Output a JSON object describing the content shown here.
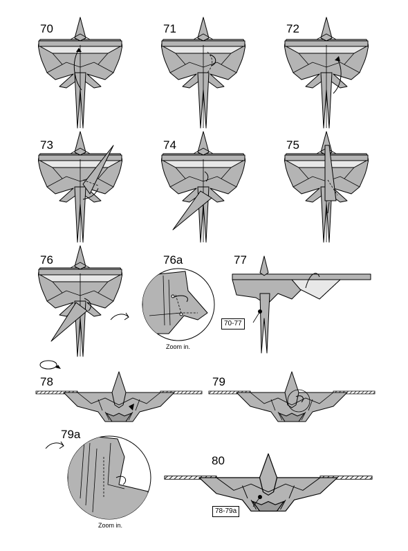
{
  "steps": {
    "s70": "70",
    "s71": "71",
    "s72": "72",
    "s73": "73",
    "s74": "74",
    "s75": "75",
    "s76": "76",
    "s76a": "76a",
    "s77": "77",
    "s78": "78",
    "s79": "79",
    "s79a": "79a",
    "s80": "80"
  },
  "captions": {
    "zoom_76a": "Zoom in.",
    "zoom_79a": "Zoom in."
  },
  "refs": {
    "r77": "70-77",
    "r80": "78-79a"
  }
}
